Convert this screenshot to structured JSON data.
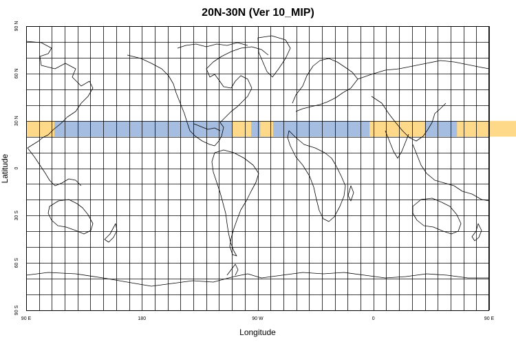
{
  "title": "20N-30N (Ver 10_MIP)",
  "xlabel": "Longitude",
  "ylabel": "Latitude",
  "colors": {
    "land_band": "#ffd98a",
    "ocean_band": "#a4bde0",
    "grid": "#000000",
    "coast": "#000000"
  },
  "map": {
    "projection": "equirectangular",
    "lon_range": [
      90,
      450
    ],
    "lat_range": [
      -90,
      90
    ],
    "grid_spacing_deg": 10,
    "highlight_band": {
      "lat_min": 20,
      "lat_max": 30
    },
    "x_ticks": [
      {
        "lon": 90,
        "label": "90 E"
      },
      {
        "lon": 180,
        "label": "180"
      },
      {
        "lon": 270,
        "label": "90 W"
      },
      {
        "lon": 360,
        "label": "0"
      },
      {
        "lon": 450,
        "label": "90 E"
      },
      {
        "lon": 540,
        "label": "180"
      }
    ],
    "y_ticks": [
      {
        "lat": 90,
        "label": "90 N"
      },
      {
        "lat": 60,
        "label": "60 N"
      },
      {
        "lat": 30,
        "label": "30 N"
      },
      {
        "lat": 0,
        "label": "0"
      },
      {
        "lat": -30,
        "label": "30 S"
      },
      {
        "lat": -60,
        "label": "60 S"
      },
      {
        "lat": -90,
        "label": "90 S"
      }
    ],
    "band_land_segments_lon": [
      [
        90,
        112
      ],
      [
        250,
        265
      ],
      [
        272,
        282
      ],
      [
        357,
        400
      ],
      [
        425,
        475
      ]
    ]
  }
}
